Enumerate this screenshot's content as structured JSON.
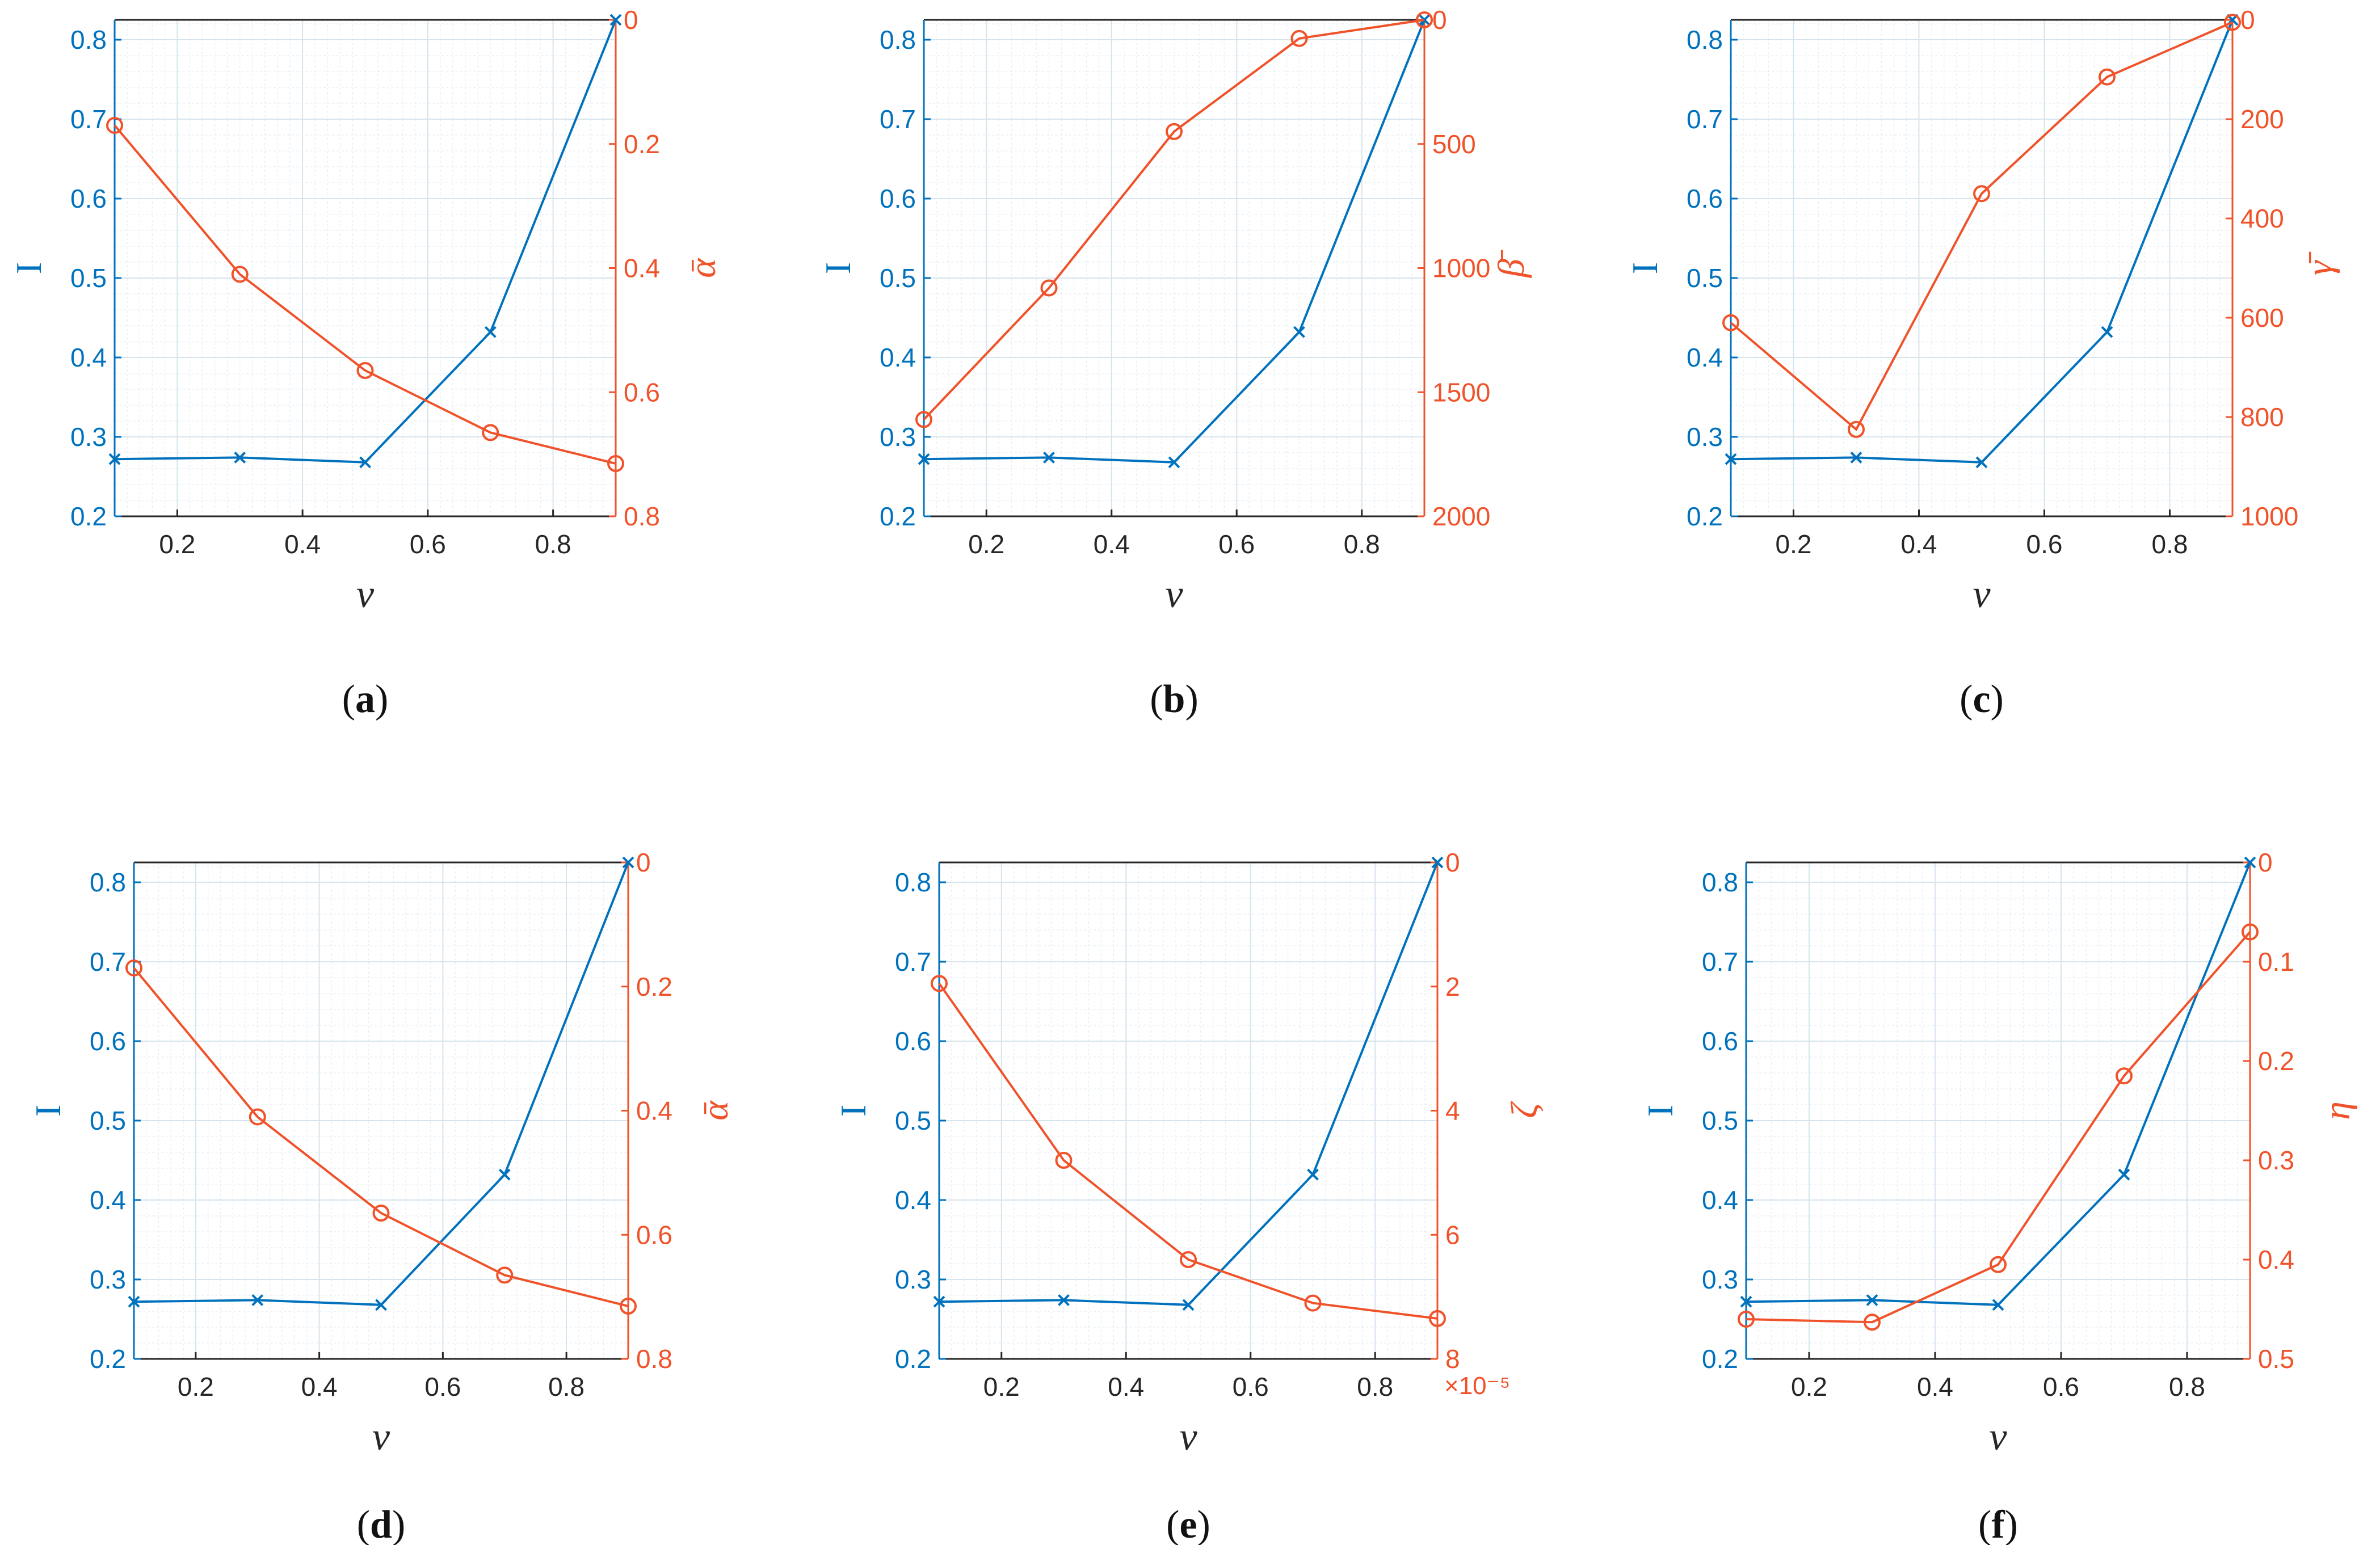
{
  "colors": {
    "left_series": "#0072BD",
    "right_series": "#F0522A",
    "axis": "#262626",
    "grid": "#D6E4EE",
    "minor_grid": "#E8F0F6"
  },
  "chart_data": [
    {
      "type": "line",
      "panel": "a",
      "caption": {
        "open": "(",
        "letter": "a",
        "close": ")"
      },
      "xlabel": "ν",
      "x": [
        0.1,
        0.3,
        0.5,
        0.7,
        0.9
      ],
      "xlim": [
        0.1,
        0.9
      ],
      "xticks": [
        "0.2",
        "0.4",
        "0.6",
        "0.8"
      ],
      "y_left": {
        "label": "I",
        "lim": [
          0.2,
          0.825
        ],
        "ticks": [
          "0.2",
          "0.3",
          "0.4",
          "0.5",
          "0.6",
          "0.7",
          "0.8"
        ],
        "series": {
          "name": "I",
          "marker": "x",
          "values": [
            0.272,
            0.274,
            0.268,
            0.432,
            0.825
          ]
        }
      },
      "y_right": {
        "label": "ᾱ",
        "reversed": true,
        "lim": [
          0,
          0.8
        ],
        "ticks": [
          "0",
          "0.2",
          "0.4",
          "0.6",
          "0.8"
        ],
        "exponent": "",
        "series": {
          "name": "ᾱ",
          "marker": "o",
          "values": [
            0.17,
            0.41,
            0.565,
            0.665,
            0.715
          ]
        }
      }
    },
    {
      "type": "line",
      "panel": "b",
      "caption": {
        "open": "(",
        "letter": "b",
        "close": ")"
      },
      "xlabel": "ν",
      "x": [
        0.1,
        0.3,
        0.5,
        0.7,
        0.9
      ],
      "xlim": [
        0.1,
        0.9
      ],
      "xticks": [
        "0.2",
        "0.4",
        "0.6",
        "0.8"
      ],
      "y_left": {
        "label": "I",
        "lim": [
          0.2,
          0.825
        ],
        "ticks": [
          "0.2",
          "0.3",
          "0.4",
          "0.5",
          "0.6",
          "0.7",
          "0.8"
        ],
        "series": {
          "name": "I",
          "marker": "x",
          "values": [
            0.272,
            0.274,
            0.268,
            0.432,
            0.825
          ]
        }
      },
      "y_right": {
        "label": "β̄",
        "reversed": true,
        "lim": [
          0,
          2000
        ],
        "ticks": [
          "0",
          "500",
          "1000",
          "1500",
          "2000"
        ],
        "exponent": "",
        "series": {
          "name": "β̄",
          "marker": "o",
          "values": [
            1610,
            1080,
            450,
            75,
            0
          ]
        }
      }
    },
    {
      "type": "line",
      "panel": "c",
      "caption": {
        "open": "(",
        "letter": "c",
        "close": ")"
      },
      "xlabel": "ν",
      "x": [
        0.1,
        0.3,
        0.5,
        0.7,
        0.9
      ],
      "xlim": [
        0.1,
        0.9
      ],
      "xticks": [
        "0.2",
        "0.4",
        "0.6",
        "0.8"
      ],
      "y_left": {
        "label": "I",
        "lim": [
          0.2,
          0.825
        ],
        "ticks": [
          "0.2",
          "0.3",
          "0.4",
          "0.5",
          "0.6",
          "0.7",
          "0.8"
        ],
        "series": {
          "name": "I",
          "marker": "x",
          "values": [
            0.272,
            0.274,
            0.268,
            0.432,
            0.825
          ]
        }
      },
      "y_right": {
        "label": "γ̄",
        "reversed": true,
        "lim": [
          0,
          1000
        ],
        "ticks": [
          "0",
          "200",
          "400",
          "600",
          "800",
          "1000"
        ],
        "exponent": "",
        "series": {
          "name": "γ̄",
          "marker": "o",
          "values": [
            610,
            825,
            350,
            115,
            5
          ]
        }
      }
    },
    {
      "type": "line",
      "panel": "d",
      "caption": {
        "open": "(",
        "letter": "d",
        "close": ")"
      },
      "xlabel": "ν",
      "x": [
        0.1,
        0.3,
        0.5,
        0.7,
        0.9
      ],
      "xlim": [
        0.1,
        0.9
      ],
      "xticks": [
        "0.2",
        "0.4",
        "0.6",
        "0.8"
      ],
      "y_left": {
        "label": "I",
        "lim": [
          0.2,
          0.825
        ],
        "ticks": [
          "0.2",
          "0.3",
          "0.4",
          "0.5",
          "0.6",
          "0.7",
          "0.8"
        ],
        "series": {
          "name": "I",
          "marker": "x",
          "values": [
            0.272,
            0.274,
            0.268,
            0.432,
            0.825
          ]
        }
      },
      "y_right": {
        "label": "ᾱ",
        "reversed": true,
        "lim": [
          0,
          0.8
        ],
        "ticks": [
          "0",
          "0.2",
          "0.4",
          "0.6",
          "0.8"
        ],
        "exponent": "",
        "series": {
          "name": "ᾱ",
          "marker": "o",
          "values": [
            0.17,
            0.41,
            0.565,
            0.665,
            0.715
          ]
        }
      }
    },
    {
      "type": "line",
      "panel": "e",
      "caption": {
        "open": "(",
        "letter": "e",
        "close": ")"
      },
      "xlabel": "ν",
      "x": [
        0.1,
        0.3,
        0.5,
        0.7,
        0.9
      ],
      "xlim": [
        0.1,
        0.9
      ],
      "xticks": [
        "0.2",
        "0.4",
        "0.6",
        "0.8"
      ],
      "y_left": {
        "label": "I",
        "lim": [
          0.2,
          0.825
        ],
        "ticks": [
          "0.2",
          "0.3",
          "0.4",
          "0.5",
          "0.6",
          "0.7",
          "0.8"
        ],
        "series": {
          "name": "I",
          "marker": "x",
          "values": [
            0.272,
            0.274,
            0.268,
            0.432,
            0.825
          ]
        }
      },
      "y_right": {
        "label": "ζ",
        "reversed": true,
        "lim": [
          0,
          8
        ],
        "ticks": [
          "0",
          "2",
          "4",
          "6",
          "8"
        ],
        "exponent": "×10⁻⁵",
        "series": {
          "name": "ζ",
          "marker": "o",
          "values": [
            1.95,
            4.8,
            6.4,
            7.1,
            7.35
          ]
        }
      }
    },
    {
      "type": "line",
      "panel": "f",
      "caption": {
        "open": "(",
        "letter": "f",
        "close": ")"
      },
      "xlabel": "ν",
      "x": [
        0.1,
        0.3,
        0.5,
        0.7,
        0.9
      ],
      "xlim": [
        0.1,
        0.9
      ],
      "xticks": [
        "0.2",
        "0.4",
        "0.6",
        "0.8"
      ],
      "y_left": {
        "label": "I",
        "lim": [
          0.2,
          0.825
        ],
        "ticks": [
          "0.2",
          "0.3",
          "0.4",
          "0.5",
          "0.6",
          "0.7",
          "0.8"
        ],
        "series": {
          "name": "I",
          "marker": "x",
          "values": [
            0.272,
            0.274,
            0.268,
            0.432,
            0.825
          ]
        }
      },
      "y_right": {
        "label": "η",
        "reversed": true,
        "lim": [
          0,
          0.5
        ],
        "ticks": [
          "0",
          "0.1",
          "0.2",
          "0.3",
          "0.4",
          "0.5"
        ],
        "exponent": "",
        "series": {
          "name": "η",
          "marker": "o",
          "values": [
            0.46,
            0.463,
            0.405,
            0.215,
            0.07
          ]
        }
      }
    }
  ]
}
